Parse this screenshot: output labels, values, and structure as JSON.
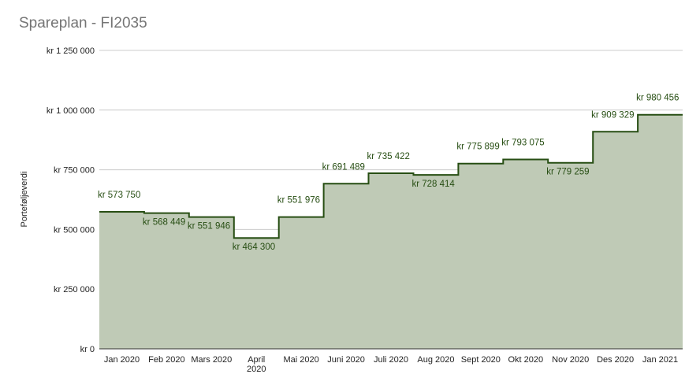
{
  "chart_data": {
    "type": "area",
    "subtype": "stepped",
    "title": "Spareplan - FI2035",
    "xlabel": "",
    "ylabel": "Porteføljeverdi",
    "ylim": [
      0,
      1250000
    ],
    "yticks": [
      0,
      250000,
      500000,
      750000,
      1000000,
      1250000
    ],
    "ytick_labels": [
      "kr  0",
      "kr 250 000",
      "kr 500 000",
      "kr 750 000",
      "kr 1 000 000",
      "kr 1 250 000"
    ],
    "grid": true,
    "legend": "none",
    "categories": [
      "Jan 2020",
      "Feb 2020",
      "Mars 2020",
      "April 2020",
      "Mai 2020",
      "Juni 2020",
      "Juli 2020",
      "Aug 2020",
      "Sept 2020",
      "Okt 2020",
      "Nov 2020",
      "Des 2020",
      "Jan 2021"
    ],
    "values": [
      573750,
      568449,
      551946,
      464300,
      551976,
      691489,
      735422,
      728414,
      775899,
      793075,
      779259,
      909329,
      980456
    ],
    "data_labels": [
      "kr  573 750",
      "kr  568 449",
      "kr  551 946",
      "kr  464 300",
      "kr  551 976",
      "kr  691 489",
      "kr  735 422",
      "kr  728 414",
      "kr  775 899",
      "kr  793 075",
      "kr  779 259",
      "kr  909 329",
      "kr  980 456"
    ],
    "colors": {
      "line": "#274e13",
      "fill": "#bfcab6",
      "grid": "#cccccc",
      "axis": "#333333",
      "label": "#274e13",
      "text": "#222222",
      "title": "#757575"
    }
  }
}
